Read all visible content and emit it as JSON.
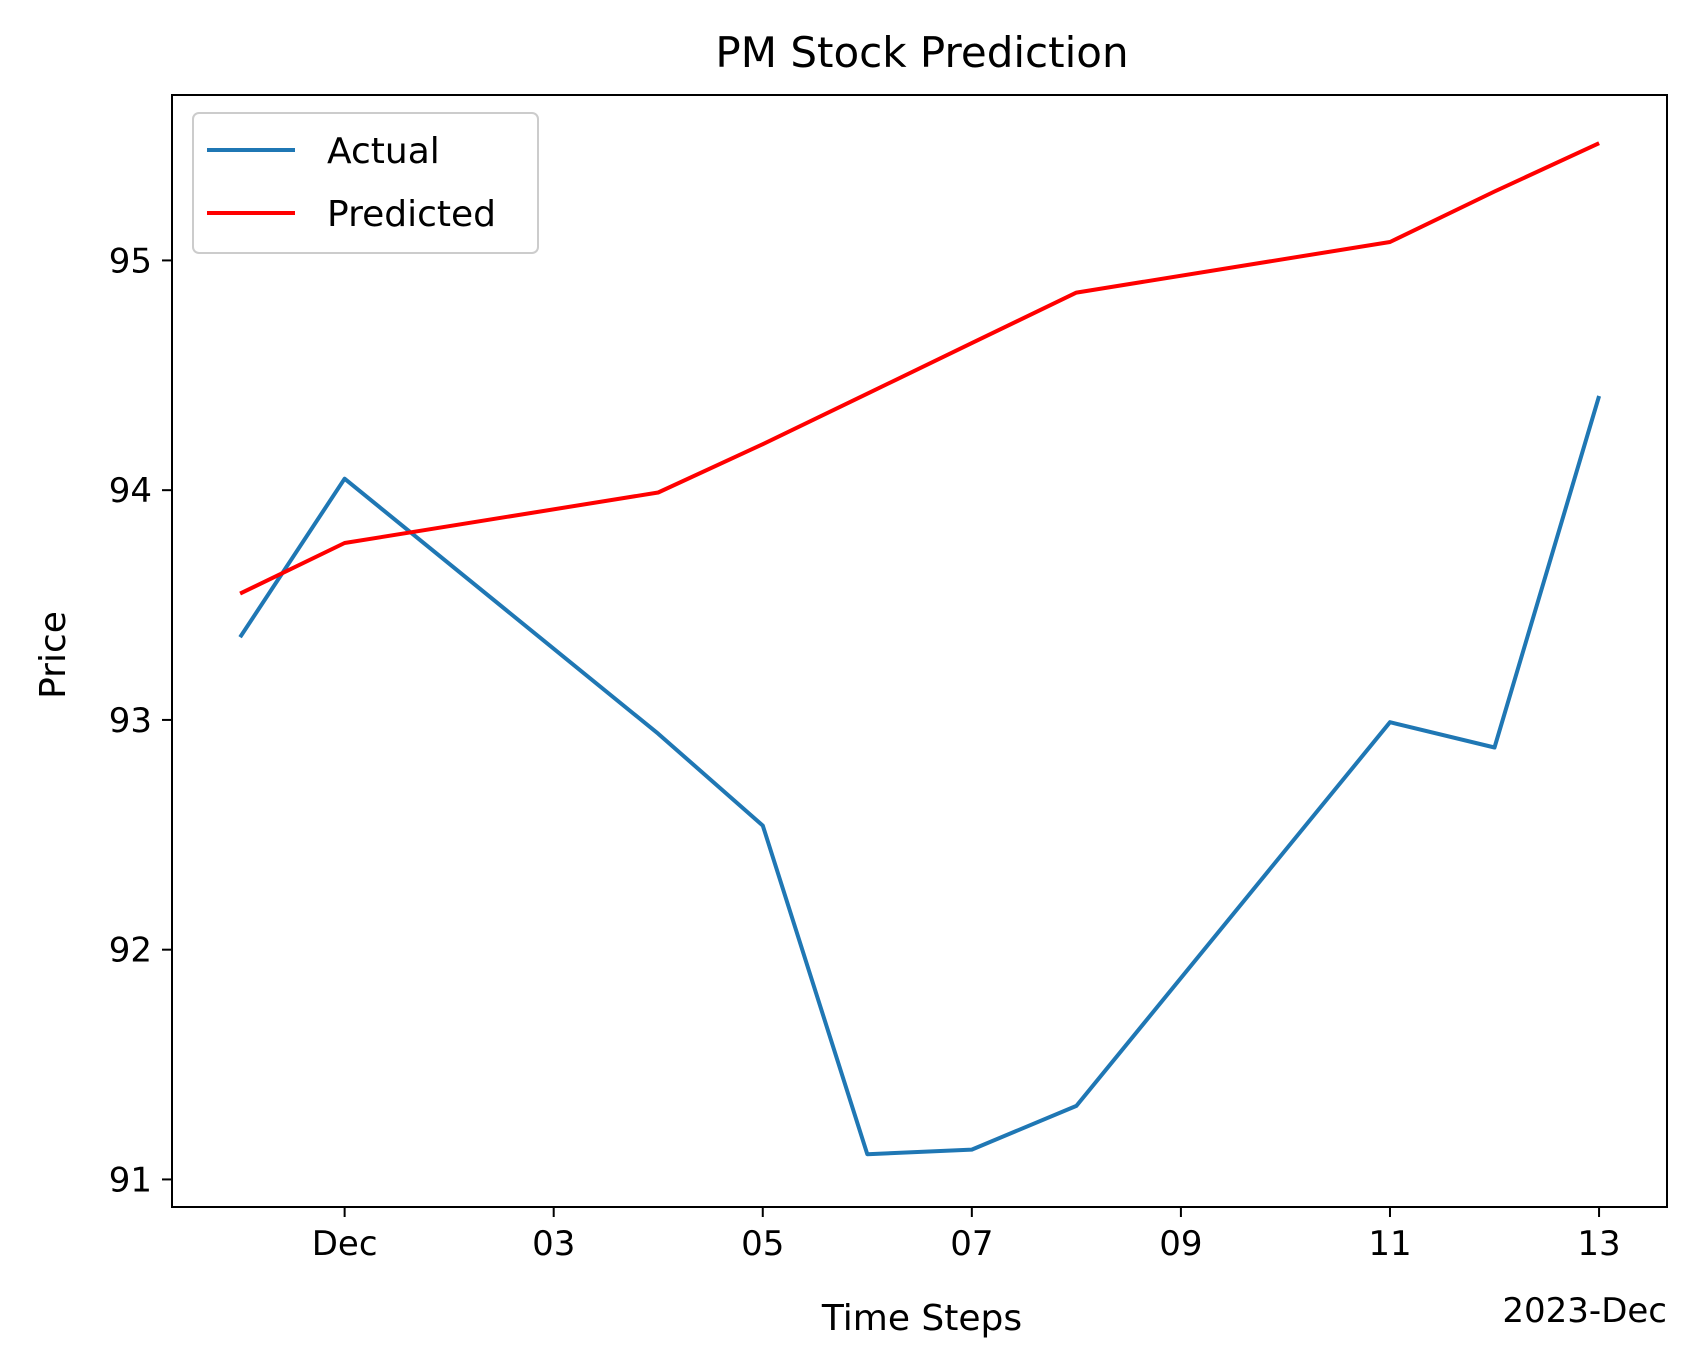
{
  "chart_data": {
    "type": "line",
    "title": "PM Stock Prediction",
    "xlabel": "Time Steps",
    "ylabel": "Price",
    "x_offset_label": "2023-Dec",
    "x": [
      "2023-11-30",
      "2023-12-01",
      "2023-12-04",
      "2023-12-05",
      "2023-12-06",
      "2023-12-07",
      "2023-12-08",
      "2023-12-11",
      "2023-12-12",
      "2023-12-13"
    ],
    "series": [
      {
        "name": "Actual",
        "color": "#1f77b4",
        "values": [
          93.36,
          94.05,
          92.94,
          92.54,
          91.11,
          91.13,
          91.32,
          92.99,
          92.88,
          94.41
        ]
      },
      {
        "name": "Predicted",
        "color": "#ff0000",
        "values": [
          93.55,
          93.77,
          93.99,
          94.2,
          94.42,
          94.64,
          94.86,
          95.08,
          95.3,
          95.51
        ]
      }
    ],
    "x_ticks": [
      {
        "date": "2023-12-01",
        "label": "Dec"
      },
      {
        "date": "2023-12-03",
        "label": "03"
      },
      {
        "date": "2023-12-05",
        "label": "05"
      },
      {
        "date": "2023-12-07",
        "label": "07"
      },
      {
        "date": "2023-12-09",
        "label": "09"
      },
      {
        "date": "2023-12-11",
        "label": "11"
      },
      {
        "date": "2023-12-13",
        "label": "13"
      }
    ],
    "y_ticks": [
      91,
      92,
      93,
      94,
      95
    ],
    "xlim": [
      "2023-11-29T08:22",
      "2023-12-13T15:36"
    ],
    "ylim": [
      90.88,
      95.72
    ],
    "grid": false,
    "legend_position": "top-left"
  }
}
